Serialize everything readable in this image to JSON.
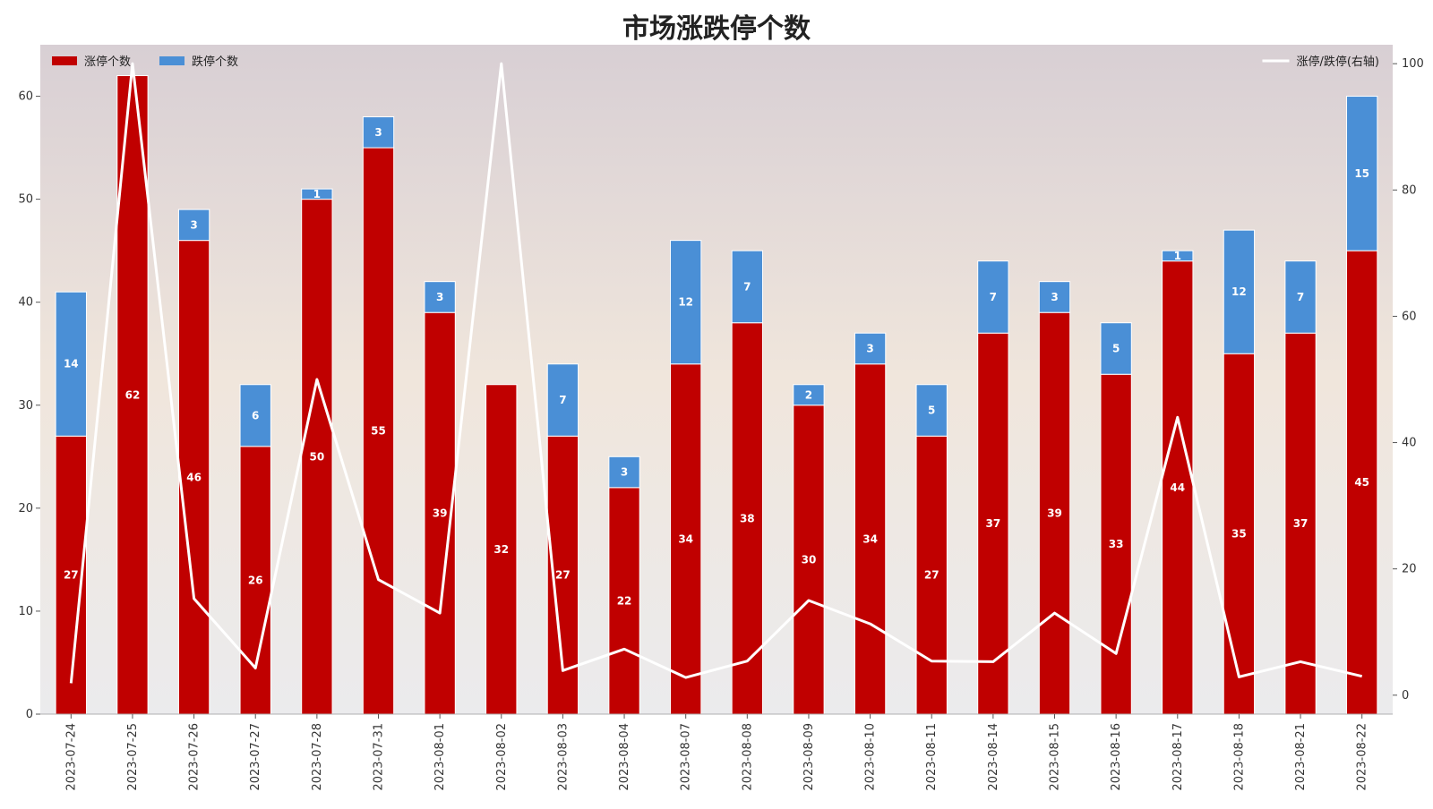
{
  "chart_data": {
    "type": "bar",
    "title": "市场涨跌停个数",
    "categories": [
      "2023-07-24",
      "2023-07-25",
      "2023-07-26",
      "2023-07-27",
      "2023-07-28",
      "2023-07-31",
      "2023-08-01",
      "2023-08-02",
      "2023-08-03",
      "2023-08-04",
      "2023-08-07",
      "2023-08-08",
      "2023-08-09",
      "2023-08-10",
      "2023-08-11",
      "2023-08-14",
      "2023-08-15",
      "2023-08-16",
      "2023-08-17",
      "2023-08-18",
      "2023-08-21",
      "2023-08-22"
    ],
    "series": [
      {
        "name": "涨停个数",
        "kind": "bar",
        "stack": "main",
        "axis": "left",
        "color": "#c00000",
        "values": [
          27,
          62,
          46,
          26,
          50,
          55,
          39,
          32,
          27,
          22,
          34,
          38,
          30,
          34,
          27,
          37,
          39,
          33,
          44,
          35,
          37,
          45
        ]
      },
      {
        "name": "跌停个数",
        "kind": "bar",
        "stack": "main",
        "axis": "left",
        "color": "#4a8fd6",
        "values": [
          14,
          0,
          3,
          6,
          1,
          3,
          3,
          0,
          7,
          3,
          12,
          7,
          2,
          3,
          5,
          7,
          3,
          5,
          1,
          12,
          7,
          15
        ]
      },
      {
        "name": "涨停/跌停(右轴)",
        "kind": "line",
        "axis": "right",
        "color": "#ffffff",
        "values": [
          1.9,
          100,
          15.3,
          4.3,
          50,
          18.3,
          13,
          100,
          3.9,
          7.3,
          2.8,
          5.4,
          15,
          11.3,
          5.4,
          5.3,
          13,
          6.6,
          44,
          2.9,
          5.3,
          3
        ]
      }
    ],
    "ylim_left": [
      0,
      65
    ],
    "yticks_left": [
      0,
      10,
      20,
      30,
      40,
      50,
      60
    ],
    "ylim_right": [
      -3,
      103
    ],
    "yticks_right": [
      0,
      20,
      40,
      60,
      80,
      100
    ],
    "legend_left_placement": "top-left",
    "legend_right_placement": "top-right",
    "grid": false,
    "background_gradient": [
      "#ebebed",
      "#f0e6dc",
      "#d8cfd4"
    ]
  }
}
